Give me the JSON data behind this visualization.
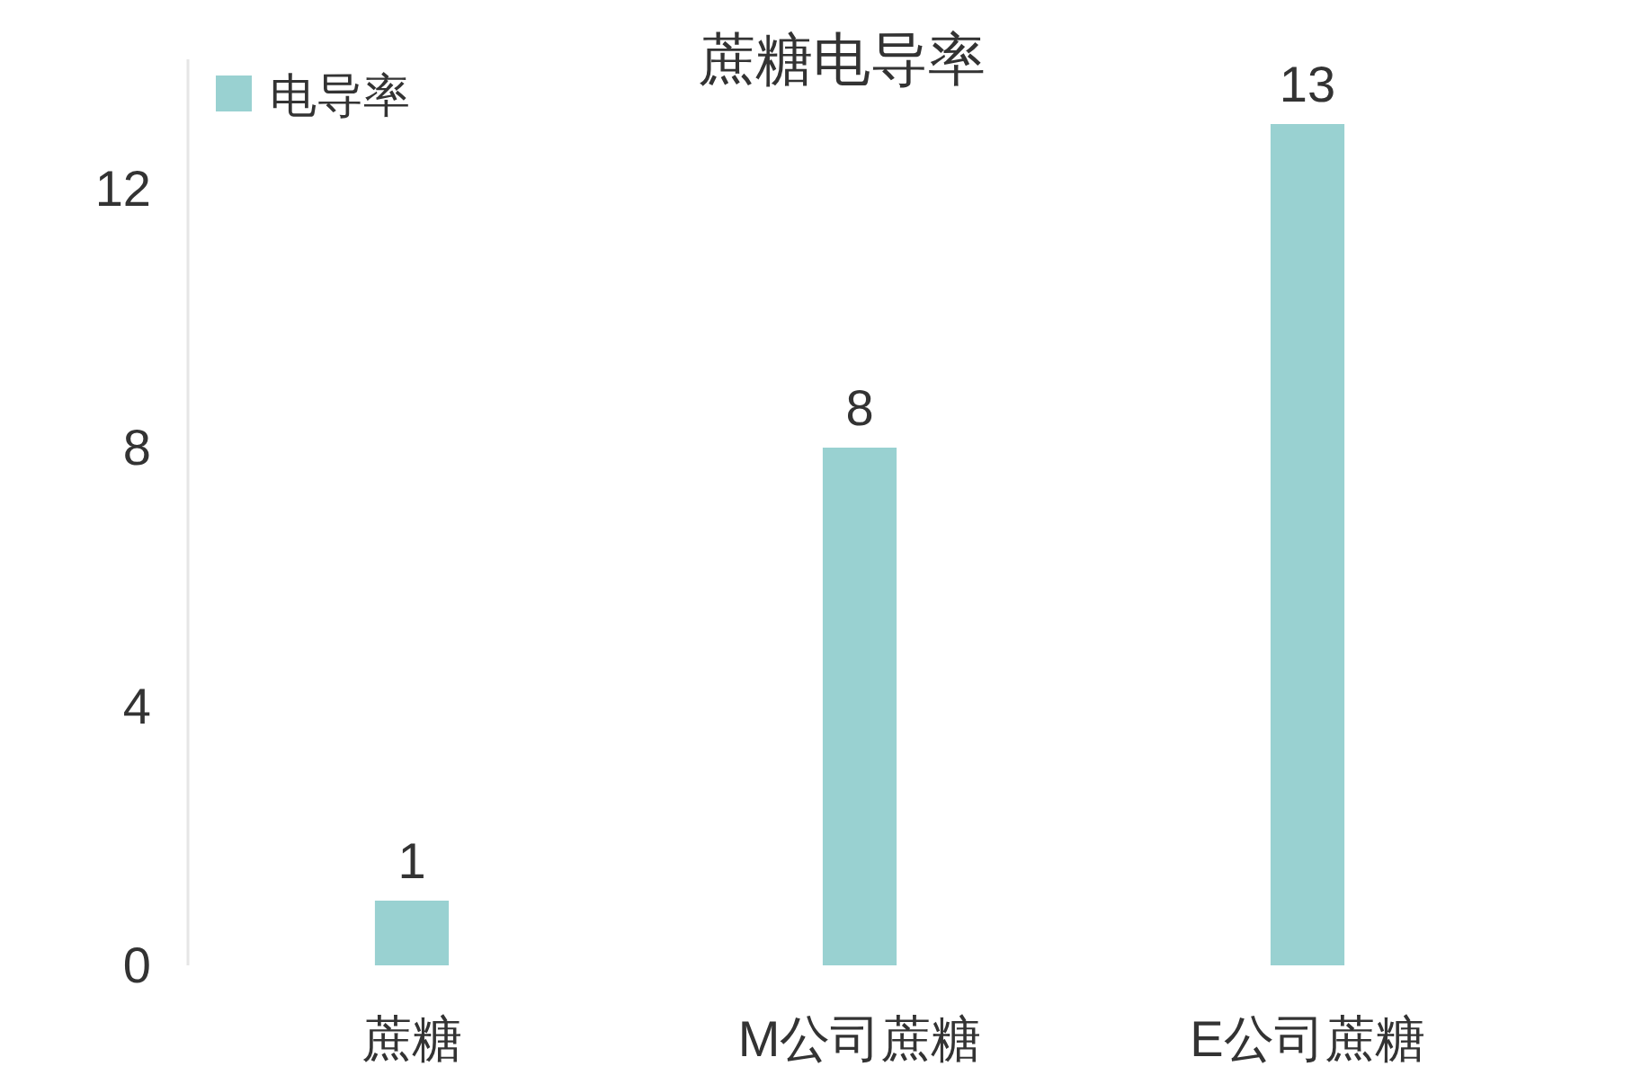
{
  "chart_data": {
    "type": "bar",
    "title": "蔗糖电导率",
    "categories": [
      "蔗糖",
      "M公司蔗糖",
      "E公司蔗糖"
    ],
    "series": [
      {
        "name": "电导率",
        "color": "#99d1d1",
        "values": [
          1,
          8,
          13
        ]
      }
    ],
    "ylim": [
      0,
      14
    ],
    "yticks": [
      0,
      4,
      8,
      12
    ],
    "data_labels": true,
    "legend": "top left",
    "grid": false
  }
}
